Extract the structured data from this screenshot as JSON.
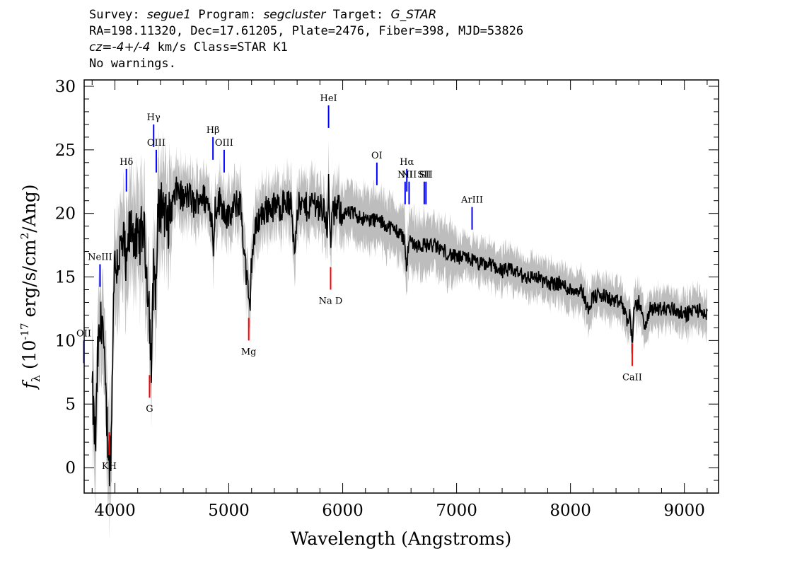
{
  "header": {
    "survey_label": "Survey:",
    "survey": "segue1",
    "program_label": "Program:",
    "program": "segcluster",
    "target_label": "Target:",
    "target": "G_STAR",
    "line2": "RA=198.11320, Dec=17.61205, Plate=2476, Fiber=398, MJD=53826",
    "cz_value": "cz=-4+/-4",
    "cz_rest": " km/s Class=STAR K1",
    "warnings": "No warnings."
  },
  "chart_data": {
    "type": "line",
    "xlabel": "Wavelength (Angstroms)",
    "ylabel": "f_λ (10^-17 erg/s/cm^2/Ang)",
    "xlim": [
      3730,
      9300
    ],
    "ylim": [
      -2,
      30.5
    ],
    "xticks": [
      4000,
      5000,
      6000,
      7000,
      8000,
      9000
    ],
    "yticks": [
      0,
      5,
      10,
      15,
      20,
      25,
      30
    ],
    "series": [
      {
        "name": "flux",
        "color": "#000000",
        "x": [
          3800,
          3830,
          3850,
          3870,
          3890,
          3910,
          3930,
          3950,
          3970,
          3990,
          4010,
          4050,
          4080,
          4101,
          4120,
          4150,
          4200,
          4250,
          4300,
          4320,
          4340,
          4361,
          4380,
          4420,
          4460,
          4500,
          4550,
          4600,
          4650,
          4700,
          4750,
          4800,
          4850,
          4861,
          4880,
          4920,
          4950,
          5000,
          5050,
          5100,
          5150,
          5170,
          5183,
          5200,
          5250,
          5300,
          5350,
          5400,
          5450,
          5500,
          5550,
          5577,
          5600,
          5650,
          5700,
          5750,
          5800,
          5850,
          5870,
          5876,
          5885,
          5893,
          5900,
          5950,
          6000,
          6100,
          6200,
          6300,
          6400,
          6500,
          6540,
          6563,
          6580,
          6650,
          6700,
          6800,
          6900,
          7000,
          7100,
          7200,
          7300,
          7400,
          7500,
          7600,
          7700,
          7800,
          7900,
          8000,
          8100,
          8150,
          8200,
          8300,
          8400,
          8450,
          8498,
          8520,
          8542,
          8560,
          8600,
          8662,
          8700,
          8800,
          8900,
          9000,
          9100,
          9200
        ],
        "values": [
          6.0,
          1.5,
          9.0,
          10.5,
          12.5,
          7.0,
          3.5,
          0.5,
          2.5,
          15.5,
          16.0,
          17.0,
          17.5,
          15.0,
          18.0,
          19.0,
          17.5,
          19.0,
          13.0,
          7.5,
          16.0,
          14.0,
          20.0,
          21.0,
          19.0,
          20.5,
          22.0,
          21.0,
          21.5,
          20.5,
          21.5,
          21.0,
          20.0,
          17.0,
          20.5,
          21.0,
          20.5,
          19.5,
          20.5,
          21.0,
          15.5,
          13.5,
          12.0,
          16.5,
          19.5,
          20.0,
          20.5,
          20.5,
          20.5,
          21.0,
          20.5,
          17.0,
          20.5,
          20.5,
          20.5,
          21.0,
          20.5,
          20.0,
          18.5,
          22.5,
          19.5,
          17.0,
          19.5,
          20.5,
          20.0,
          20.0,
          19.5,
          19.5,
          19.0,
          18.5,
          18.0,
          15.5,
          18.0,
          17.5,
          17.5,
          17.5,
          17.0,
          16.5,
          16.5,
          16.0,
          16.0,
          15.5,
          15.5,
          15.0,
          15.0,
          14.5,
          14.5,
          14.0,
          14.0,
          12.5,
          13.5,
          13.5,
          13.0,
          13.0,
          11.5,
          12.0,
          10.0,
          12.5,
          13.0,
          11.0,
          12.5,
          12.5,
          12.5,
          12.0,
          12.5,
          12.0
        ]
      }
    ],
    "emission_lines": [
      {
        "label": "OII",
        "x": 3727,
        "y": 10.0
      },
      {
        "label": "NeIII",
        "x": 3869,
        "y": 16.0
      },
      {
        "label": "Hδ",
        "x": 4101,
        "y": 23.5
      },
      {
        "label": "Hγ",
        "x": 4340,
        "y": 27.0
      },
      {
        "label": "OIII",
        "x": 4363,
        "y": 25.0
      },
      {
        "label": "Hβ",
        "x": 4861,
        "y": 26.0
      },
      {
        "label": "OIII",
        "x": 4959,
        "y": 25.0
      },
      {
        "label": "HeI",
        "x": 5876,
        "y": 28.5
      },
      {
        "label": "OI",
        "x": 6300,
        "y": 24.0
      },
      {
        "label": "NII",
        "x": 6548,
        "y": 22.5
      },
      {
        "label": "Hα",
        "x": 6563,
        "y": 23.5
      },
      {
        "label": "NII",
        "x": 6583,
        "y": 22.5
      },
      {
        "label": "SII",
        "x": 6716,
        "y": 22.5
      },
      {
        "label": "SII",
        "x": 6731,
        "y": 22.5
      },
      {
        "label": "ArIII",
        "x": 7136,
        "y": 20.5
      }
    ],
    "absorption_lines": [
      {
        "label": "KH",
        "x": 3950,
        "y": 1.0
      },
      {
        "label": "G",
        "x": 4304,
        "y": 5.5
      },
      {
        "label": "Mg",
        "x": 5175,
        "y": 10.0
      },
      {
        "label": "Na D",
        "x": 5894,
        "y": 14.0
      },
      {
        "label": "CaII",
        "x": 8542,
        "y": 8.0
      }
    ],
    "colors": {
      "flux": "#000000",
      "noise": "#bdbdbd",
      "emission": "#0000ff",
      "absorption": "#ff0000"
    }
  }
}
